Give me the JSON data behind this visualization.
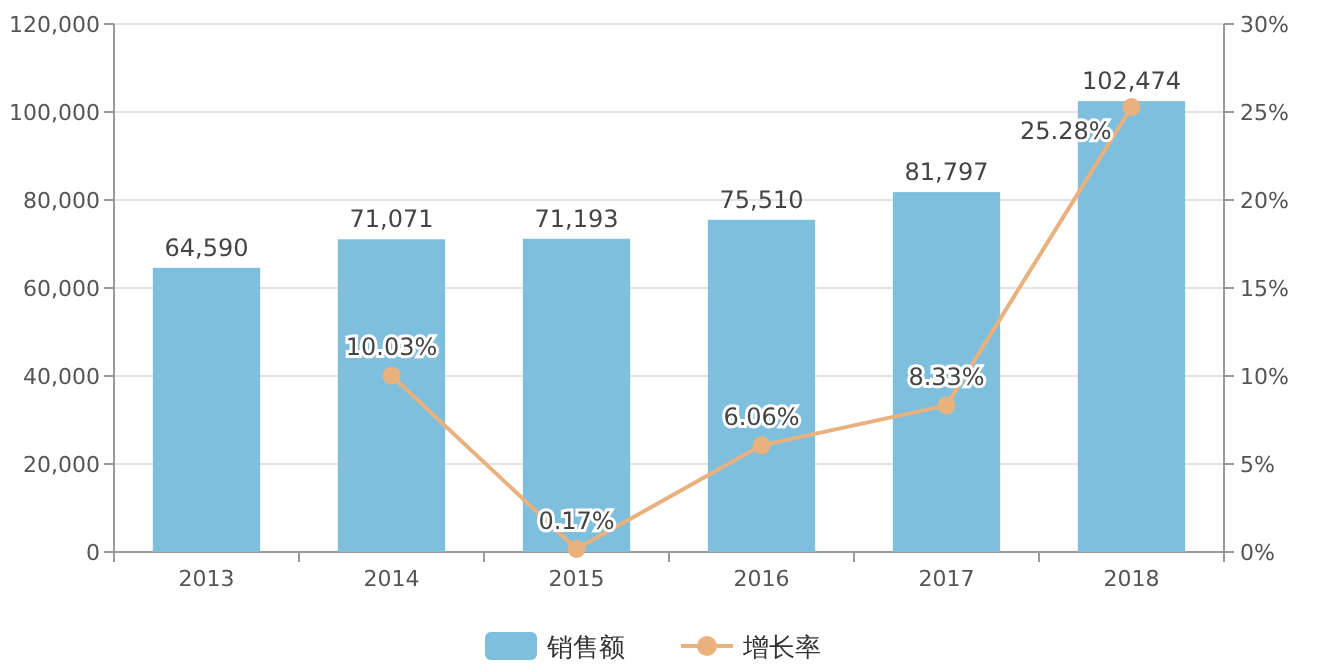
{
  "chart_data": {
    "type": "bar",
    "categories": [
      "2013",
      "2014",
      "2015",
      "2016",
      "2017",
      "2018"
    ],
    "series": [
      {
        "name": "销售额",
        "color": "#7ebfdd",
        "values": [
          64590,
          71071,
          71193,
          75510,
          81797,
          102474
        ],
        "value_labels": [
          "64,590",
          "71,071",
          "71,193",
          "75,510",
          "81,797",
          "102,474"
        ]
      },
      {
        "name": "增长率",
        "type": "line",
        "axis": "y2",
        "color": "#e8b17e",
        "values": [
          null,
          10.03,
          0.17,
          6.06,
          8.33,
          25.28
        ],
        "value_labels": [
          null,
          "10.03%",
          "0.17%",
          "6.06%",
          "8.33%",
          "25.28%"
        ]
      }
    ],
    "ylim": [
      0,
      120000
    ],
    "yticks": [
      0,
      {
        "value": 20000,
        "label": "20,000"
      },
      {
        "value": 40000,
        "label": "40,000"
      },
      {
        "value": 60000,
        "label": "60,000"
      },
      {
        "value": 80000,
        "label": "80,000"
      },
      {
        "value": 100000,
        "label": "100,000"
      },
      {
        "value": 120000,
        "label": "120,000"
      }
    ],
    "y2lim": [
      0,
      30
    ],
    "y2ticks": [
      {
        "value": 0,
        "label": "0%"
      },
      {
        "value": 5,
        "label": "5%"
      },
      {
        "value": 10,
        "label": "10%"
      },
      {
        "value": 15,
        "label": "15%"
      },
      {
        "value": 20,
        "label": "20%"
      },
      {
        "value": 25,
        "label": "25%"
      },
      {
        "value": 30,
        "label": "30%"
      }
    ],
    "grid": "y",
    "legend": "bottom",
    "marker": "circle",
    "line_style": "solid"
  }
}
